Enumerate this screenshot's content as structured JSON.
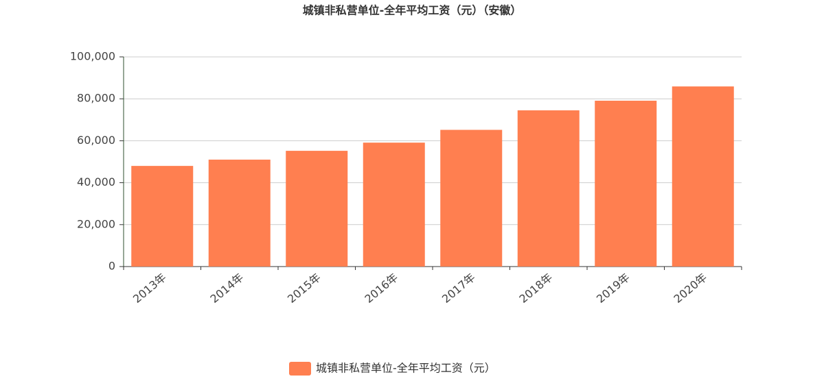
{
  "chart_data": {
    "type": "bar",
    "title": "城镇非私营单位-全年平均工资（元）（安徽）",
    "categories": [
      "2013年",
      "2014年",
      "2015年",
      "2016年",
      "2017年",
      "2018年",
      "2019年",
      "2020年"
    ],
    "series": [
      {
        "name": "城镇非私营单位-全年平均工资（元）",
        "color": "#ff7f50",
        "values": [
          48000,
          51000,
          55200,
          59100,
          65200,
          74500,
          79100,
          85900
        ]
      }
    ],
    "ylim": [
      0,
      100000
    ],
    "yticks": [
      0,
      {
        "value": 20000,
        "label": "20,000"
      },
      {
        "value": 40000,
        "label": "40,000"
      },
      {
        "value": 60000,
        "label": "60,000"
      },
      {
        "value": 80000,
        "label": "80,000"
      },
      {
        "value": 100000,
        "label": "100,000"
      }
    ],
    "grid": true,
    "legend": "bottom"
  }
}
